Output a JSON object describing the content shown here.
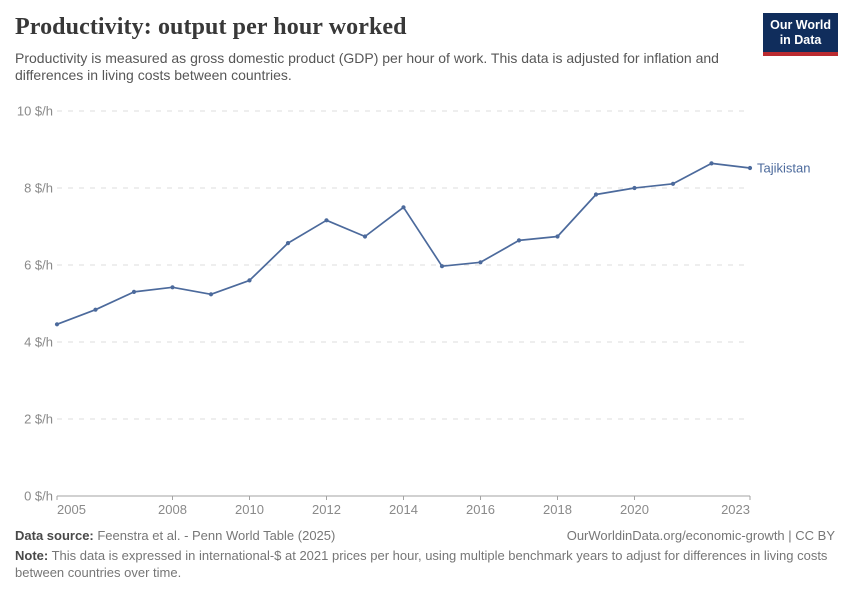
{
  "header": {
    "title": "Productivity: output per hour worked",
    "subtitle": "Productivity is measured as gross domestic product (GDP) per hour of work. This data is adjusted for inflation and differences in living costs between countries.",
    "logo_line1": "Our World",
    "logo_line2": "in Data"
  },
  "chart_data": {
    "type": "line",
    "title": "Productivity: output per hour worked",
    "entity": "Tajikistan",
    "unit": "$/h",
    "x": [
      2005,
      2006,
      2007,
      2008,
      2009,
      2010,
      2011,
      2012,
      2013,
      2014,
      2015,
      2016,
      2017,
      2018,
      2019,
      2020,
      2021,
      2022,
      2023
    ],
    "series": [
      {
        "name": "Tajikistan",
        "values": [
          4.46,
          4.84,
          5.3,
          5.42,
          5.24,
          5.6,
          6.57,
          7.16,
          6.74,
          7.5,
          5.97,
          6.07,
          6.64,
          6.74,
          7.83,
          8.0,
          8.11,
          8.64,
          8.52
        ]
      }
    ],
    "xlim": [
      2005,
      2023
    ],
    "ylim": [
      0,
      10
    ],
    "y_ticks": [
      0,
      2,
      4,
      6,
      8,
      10
    ],
    "y_tick_labels": [
      "0 $/h",
      "2 $/h",
      "4 $/h",
      "6 $/h",
      "8 $/h",
      "10 $/h"
    ],
    "x_tick_labels": [
      2005,
      2008,
      2010,
      2012,
      2014,
      2016,
      2018,
      2020,
      2023
    ],
    "grid": "dashed-horizontal",
    "legend_position": "end-of-line"
  },
  "footer": {
    "datasource_label": "Data source:",
    "datasource_text": " Feenstra et al. - Penn World Table (2025)",
    "link_text": "OurWorldinData.org/economic-growth | CC BY",
    "note_label": "Note:",
    "note_text": " This data is expressed in international-$ at 2021 prices per hour, using multiple benchmark years to adjust for differences in living costs between countries over time."
  },
  "colors": {
    "line": "#4C6A9C",
    "series_label": "#4C6A9C",
    "gridline": "#dcdcdc",
    "axis_line": "#a3a3a3",
    "tick_label": "#8a8a8a",
    "logo_bg": "#102d5c",
    "logo_stripe": "#bb2b30"
  }
}
